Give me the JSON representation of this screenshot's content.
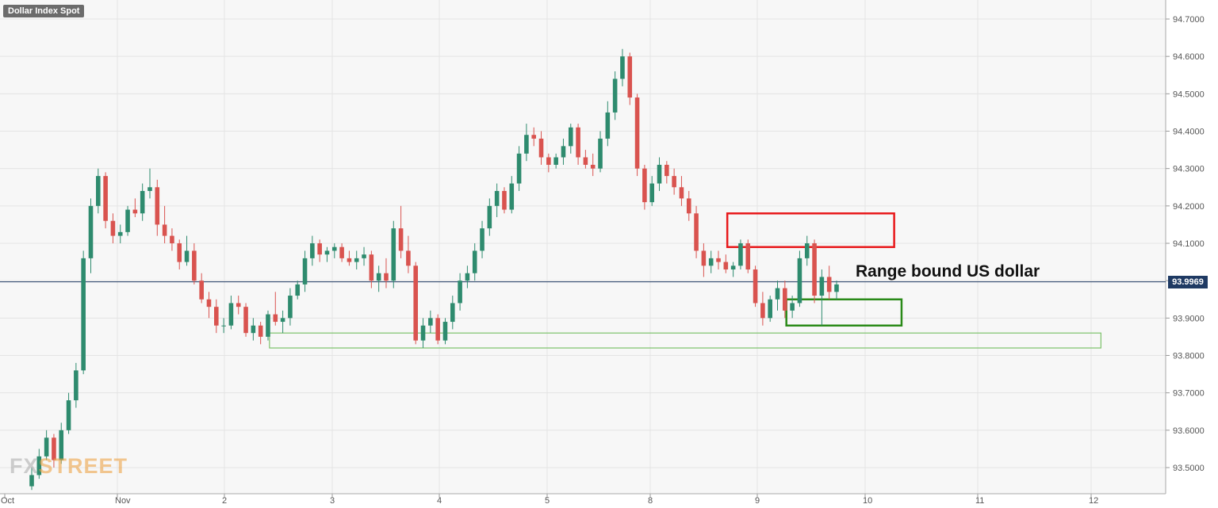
{
  "chart_data": {
    "type": "candlestick",
    "title": "Dollar Index Spot",
    "annotation": "Range bound US dollar",
    "current_price": "93.9969",
    "watermark": {
      "part1": "FX",
      "part2": "STREET"
    },
    "y_ticks": [
      "94.7000",
      "94.6000",
      "94.5000",
      "94.4000",
      "94.3000",
      "94.2000",
      "94.1000",
      "94.0000",
      "93.9000",
      "93.8000",
      "93.7000",
      "93.6000",
      "93.5000"
    ],
    "y_tick_values": [
      94.7,
      94.6,
      94.5,
      94.4,
      94.3,
      94.2,
      94.1,
      94.0,
      93.9,
      93.8,
      93.7,
      93.6,
      93.5
    ],
    "ylim": [
      93.46,
      94.73
    ],
    "x_labels": [
      "Oct",
      "Nov",
      "2",
      "3",
      "4",
      "5",
      "8",
      "9",
      "10",
      "11",
      "12"
    ],
    "grid": true,
    "colors": {
      "up": "#2e8b6e",
      "down": "#d9534f",
      "red_box": "#e8191b",
      "green_box": "#2a8a18",
      "light_green_box": "#7cc26a",
      "price_line": "#1f3a63"
    },
    "zones": [
      {
        "name": "resistance",
        "top": 94.18,
        "bottom": 94.09,
        "from_index": 95,
        "to_index": 116
      },
      {
        "name": "range-support",
        "top": 93.95,
        "bottom": 93.88,
        "from_index": 103,
        "to_index": 117
      },
      {
        "name": "major-support",
        "top": 93.86,
        "bottom": 93.82,
        "from_index": 33,
        "to_index": 144
      }
    ],
    "candles": [
      [
        93.45,
        93.5,
        93.44,
        93.48
      ],
      [
        93.48,
        93.55,
        93.47,
        93.53
      ],
      [
        93.53,
        93.6,
        93.52,
        93.58
      ],
      [
        93.58,
        93.59,
        93.5,
        93.52
      ],
      [
        93.52,
        93.62,
        93.51,
        93.6
      ],
      [
        93.6,
        93.7,
        93.59,
        93.68
      ],
      [
        93.68,
        93.78,
        93.66,
        93.76
      ],
      [
        93.76,
        94.08,
        93.75,
        94.06
      ],
      [
        94.06,
        94.22,
        94.02,
        94.2
      ],
      [
        94.2,
        94.3,
        94.18,
        94.28
      ],
      [
        94.28,
        94.29,
        94.14,
        94.16
      ],
      [
        94.16,
        94.18,
        94.1,
        94.12
      ],
      [
        94.12,
        94.15,
        94.1,
        94.13
      ],
      [
        94.13,
        94.2,
        94.12,
        94.19
      ],
      [
        94.19,
        94.22,
        94.17,
        94.18
      ],
      [
        94.18,
        94.26,
        94.16,
        94.24
      ],
      [
        94.24,
        94.3,
        94.22,
        94.25
      ],
      [
        94.25,
        94.27,
        94.12,
        94.15
      ],
      [
        94.15,
        94.2,
        94.1,
        94.12
      ],
      [
        94.12,
        94.14,
        94.08,
        94.1
      ],
      [
        94.1,
        94.11,
        94.03,
        94.05
      ],
      [
        94.05,
        94.12,
        94.04,
        94.08
      ],
      [
        94.08,
        94.1,
        93.99,
        94.0
      ],
      [
        94.0,
        94.02,
        93.94,
        93.95
      ],
      [
        93.95,
        93.97,
        93.9,
        93.93
      ],
      [
        93.93,
        93.95,
        93.86,
        93.88
      ],
      [
        93.88,
        93.9,
        93.86,
        93.88
      ],
      [
        93.88,
        93.96,
        93.87,
        93.94
      ],
      [
        93.94,
        93.96,
        93.91,
        93.93
      ],
      [
        93.93,
        93.94,
        93.85,
        93.86
      ],
      [
        93.86,
        93.9,
        93.84,
        93.88
      ],
      [
        93.88,
        93.89,
        93.83,
        93.85
      ],
      [
        93.85,
        93.92,
        93.84,
        93.91
      ],
      [
        93.91,
        93.97,
        93.88,
        93.89
      ],
      [
        93.89,
        93.92,
        93.86,
        93.9
      ],
      [
        93.9,
        93.98,
        93.88,
        93.96
      ],
      [
        93.96,
        94.0,
        93.95,
        93.99
      ],
      [
        93.99,
        94.08,
        93.97,
        94.06
      ],
      [
        94.06,
        94.12,
        94.04,
        94.1
      ],
      [
        94.1,
        94.11,
        94.05,
        94.07
      ],
      [
        94.07,
        94.09,
        94.05,
        94.08
      ],
      [
        94.08,
        94.1,
        94.06,
        94.09
      ],
      [
        94.09,
        94.1,
        94.05,
        94.06
      ],
      [
        94.06,
        94.08,
        94.04,
        94.05
      ],
      [
        94.05,
        94.08,
        94.03,
        94.06
      ],
      [
        94.06,
        94.09,
        94.04,
        94.07
      ],
      [
        94.07,
        94.08,
        93.98,
        94.0
      ],
      [
        94.0,
        94.04,
        93.97,
        94.02
      ],
      [
        94.02,
        94.06,
        93.98,
        94.0
      ],
      [
        94.0,
        94.16,
        93.98,
        94.14
      ],
      [
        94.14,
        94.2,
        94.06,
        94.08
      ],
      [
        94.08,
        94.12,
        94.02,
        94.04
      ],
      [
        94.04,
        94.05,
        93.83,
        93.84
      ],
      [
        93.84,
        93.9,
        93.82,
        93.88
      ],
      [
        93.88,
        93.92,
        93.86,
        93.9
      ],
      [
        93.9,
        93.91,
        93.83,
        93.84
      ],
      [
        93.84,
        93.9,
        93.83,
        93.89
      ],
      [
        93.89,
        93.96,
        93.87,
        93.94
      ],
      [
        93.94,
        94.02,
        93.92,
        94.0
      ],
      [
        94.0,
        94.04,
        93.98,
        94.02
      ],
      [
        94.02,
        94.1,
        94.0,
        94.08
      ],
      [
        94.08,
        94.16,
        94.06,
        94.14
      ],
      [
        94.14,
        94.22,
        94.12,
        94.2
      ],
      [
        94.2,
        94.26,
        94.17,
        94.24
      ],
      [
        94.24,
        94.25,
        94.18,
        94.19
      ],
      [
        94.19,
        94.28,
        94.18,
        94.26
      ],
      [
        94.26,
        94.36,
        94.24,
        94.34
      ],
      [
        94.34,
        94.42,
        94.32,
        94.39
      ],
      [
        94.39,
        94.41,
        94.36,
        94.38
      ],
      [
        94.38,
        94.4,
        94.31,
        94.33
      ],
      [
        94.33,
        94.34,
        94.29,
        94.31
      ],
      [
        94.31,
        94.34,
        94.3,
        94.33
      ],
      [
        94.33,
        94.38,
        94.31,
        94.36
      ],
      [
        94.36,
        94.42,
        94.34,
        94.41
      ],
      [
        94.41,
        94.42,
        94.31,
        94.33
      ],
      [
        94.33,
        94.35,
        94.3,
        94.31
      ],
      [
        94.31,
        94.34,
        94.28,
        94.3
      ],
      [
        94.3,
        94.4,
        94.29,
        94.38
      ],
      [
        94.38,
        94.48,
        94.36,
        94.45
      ],
      [
        94.45,
        94.56,
        94.43,
        94.54
      ],
      [
        94.54,
        94.62,
        94.52,
        94.6
      ],
      [
        94.6,
        94.61,
        94.47,
        94.49
      ],
      [
        94.49,
        94.5,
        94.28,
        94.3
      ],
      [
        94.3,
        94.31,
        94.19,
        94.21
      ],
      [
        94.21,
        94.28,
        94.2,
        94.26
      ],
      [
        94.26,
        94.33,
        94.24,
        94.31
      ],
      [
        94.31,
        94.32,
        94.26,
        94.28
      ],
      [
        94.28,
        94.3,
        94.23,
        94.25
      ],
      [
        94.25,
        94.28,
        94.2,
        94.22
      ],
      [
        94.22,
        94.24,
        94.16,
        94.18
      ],
      [
        94.18,
        94.2,
        94.06,
        94.08
      ],
      [
        94.08,
        94.1,
        94.01,
        94.04
      ],
      [
        94.04,
        94.08,
        94.02,
        94.06
      ],
      [
        94.06,
        94.08,
        94.03,
        94.05
      ],
      [
        94.05,
        94.07,
        94.02,
        94.03
      ],
      [
        94.03,
        94.05,
        94.01,
        94.04
      ],
      [
        94.04,
        94.11,
        94.03,
        94.1
      ],
      [
        94.1,
        94.11,
        94.02,
        94.03
      ],
      [
        94.03,
        94.04,
        93.93,
        93.94
      ],
      [
        93.94,
        93.97,
        93.88,
        93.9
      ],
      [
        93.9,
        93.96,
        93.89,
        93.95
      ],
      [
        93.95,
        94.0,
        93.92,
        93.98
      ],
      [
        93.98,
        94.0,
        93.9,
        93.92
      ],
      [
        93.92,
        93.96,
        93.9,
        93.94
      ],
      [
        93.94,
        94.08,
        93.93,
        94.06
      ],
      [
        94.06,
        94.12,
        94.04,
        94.1
      ],
      [
        94.1,
        94.11,
        93.94,
        93.96
      ],
      [
        93.96,
        94.03,
        93.88,
        94.01
      ],
      [
        94.01,
        94.04,
        93.95,
        93.97
      ],
      [
        93.97,
        94.0,
        93.95,
        93.99
      ]
    ]
  }
}
